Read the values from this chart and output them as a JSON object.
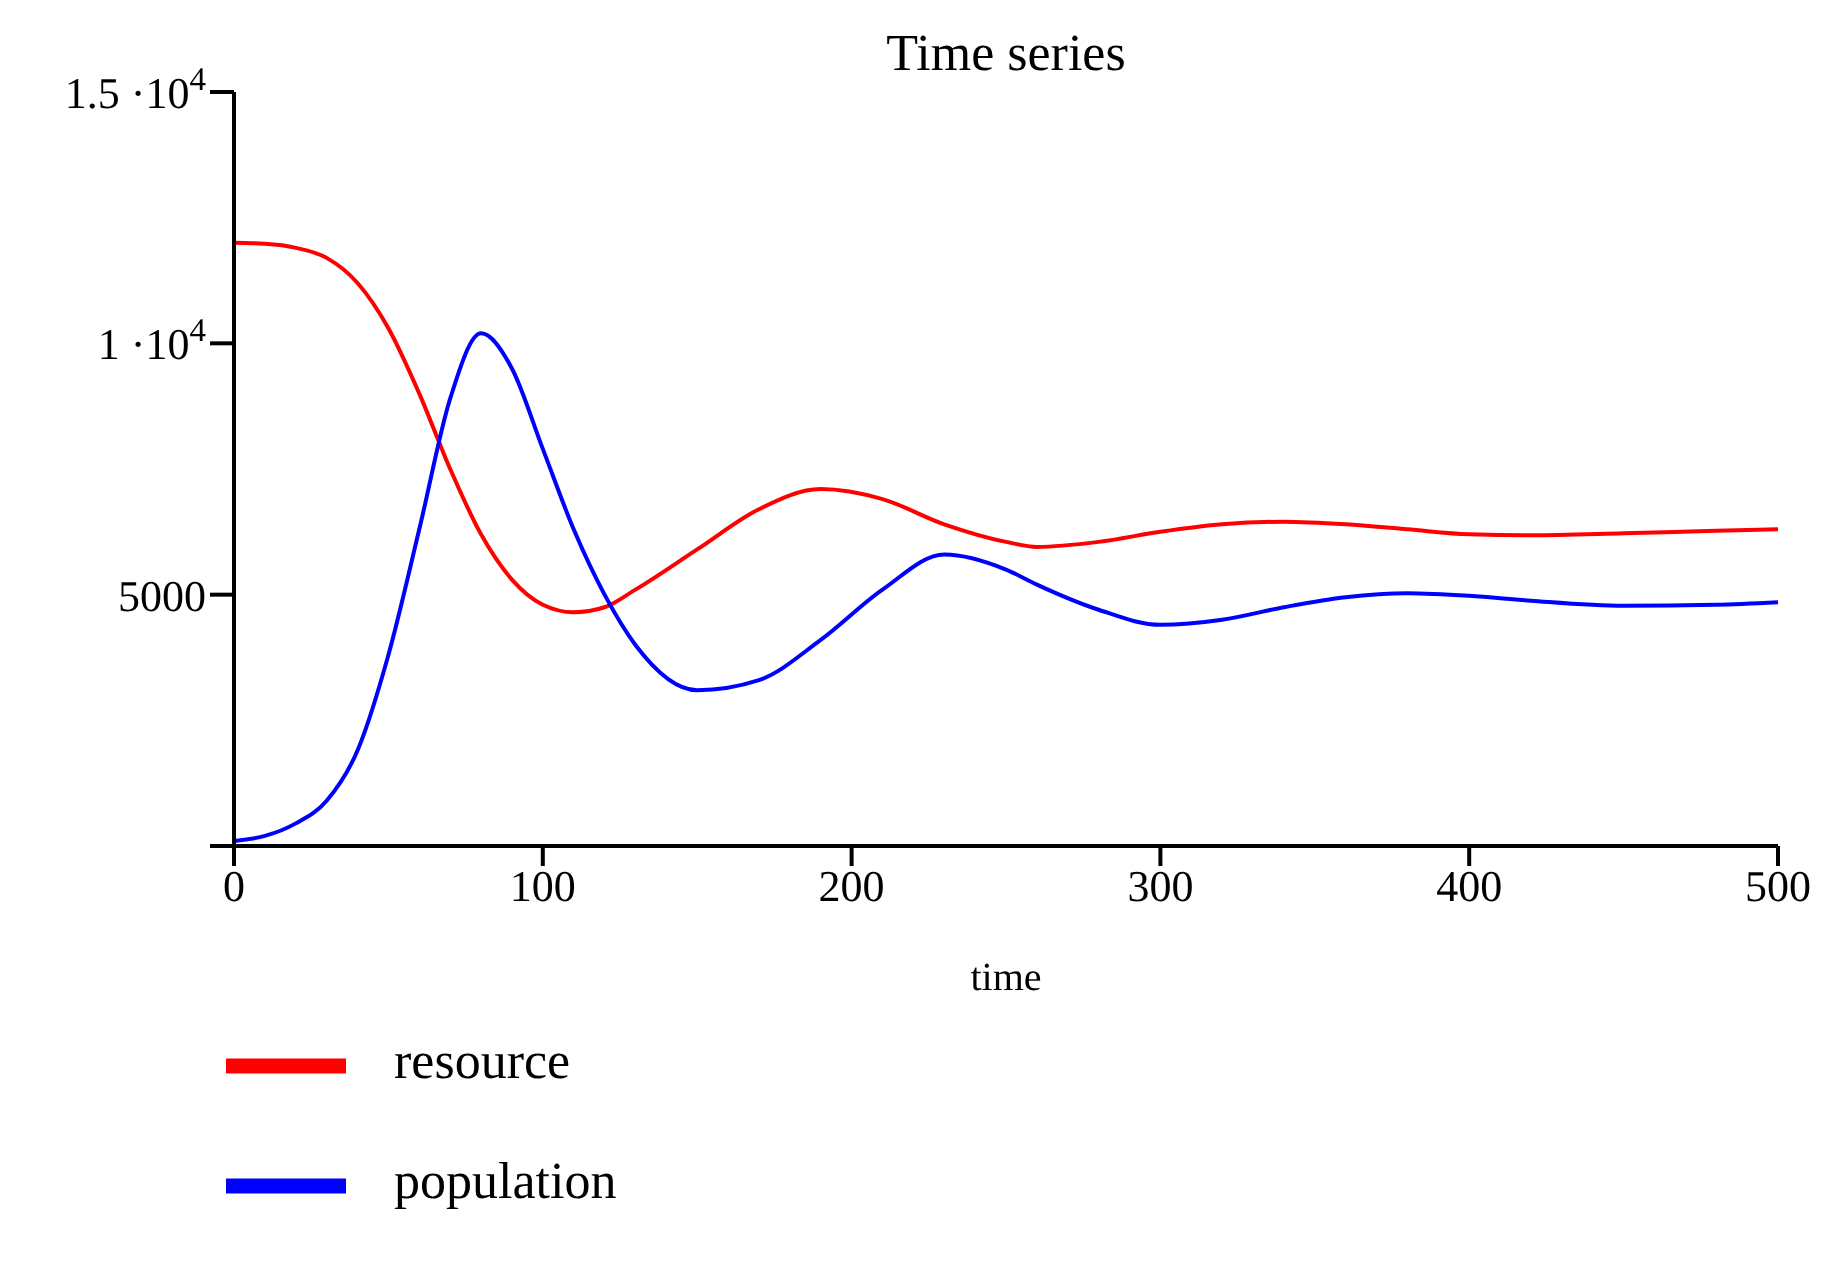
{
  "chart_data": {
    "type": "line",
    "title": "Time series",
    "xlabel": "time",
    "xlim": [
      0,
      500
    ],
    "xticks": [
      0,
      100,
      200,
      300,
      400,
      500
    ],
    "ylim": [
      0,
      15000
    ],
    "yticks": [
      {
        "value": 0,
        "label": null
      },
      5000,
      {
        "value": 10000,
        "label": "1 ·10$^{4}$"
      },
      {
        "value": 15000,
        "label": "1.5 ·10$^{4}$"
      }
    ],
    "grid": false,
    "legend": "bottom left",
    "marker": "none",
    "line_style": "solid",
    "x": [
      0,
      10,
      20,
      30,
      40,
      50,
      60,
      70,
      80,
      90,
      100,
      110,
      120,
      130,
      150,
      170,
      190,
      210,
      230,
      250,
      260,
      280,
      300,
      320,
      340,
      360,
      380,
      400,
      420,
      450,
      480,
      500
    ],
    "series": [
      {
        "name": "resource",
        "color": "#ff0000",
        "values": [
          12000,
          11980,
          11900,
          11700,
          11200,
          10300,
          9000,
          7500,
          6200,
          5300,
          4800,
          4650,
          4750,
          5100,
          5900,
          6700,
          7100,
          6900,
          6400,
          6050,
          5950,
          6050,
          6250,
          6400,
          6450,
          6400,
          6300,
          6200,
          6180,
          6220,
          6270,
          6300
        ]
      },
      {
        "name": "population",
        "color": "#0000ff",
        "values": [
          100,
          200,
          450,
          900,
          1900,
          3800,
          6300,
          8900,
          10200,
          9500,
          7900,
          6300,
          5000,
          4000,
          3100,
          3300,
          4100,
          5100,
          5800,
          5500,
          5200,
          4700,
          4400,
          4500,
          4750,
          4950,
          5030,
          4980,
          4880,
          4780,
          4800,
          4850
        ]
      }
    ]
  }
}
